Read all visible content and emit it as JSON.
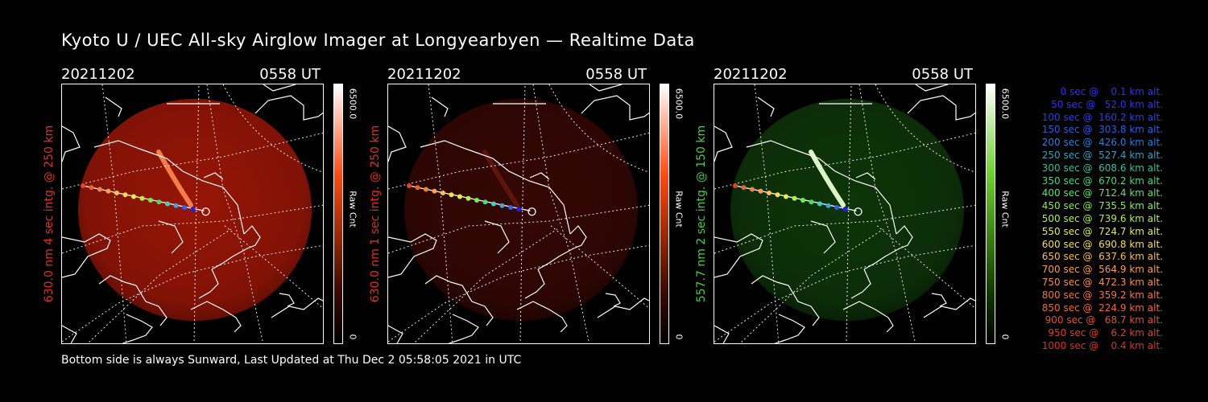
{
  "title": "Kyoto U / UEC All-sky Airglow Imager at Longyearbyen — Realtime Data",
  "footer": "Bottom side is always Sunward, Last Updated at Thu Dec  2 05:58:05 2021 in UTC",
  "colors": {
    "red_label": "#e03020",
    "green_label": "#40d040"
  },
  "panels": [
    {
      "date": "20211202",
      "time": "0558 UT",
      "ylabel": "630.0 nm 4 sec intg. @ 250 km",
      "ylabel_color": "#e03020",
      "cbar_max": "6500.0",
      "cbar_min": "0",
      "cbar_unit": "Raw Cnt",
      "cbar_color": "#ff4a10",
      "sky_color": "#b81a08",
      "sky_opacity": 0.82,
      "band_color": "#ff8a50",
      "band_opacity": 0.9
    },
    {
      "date": "20211202",
      "time": "0558 UT",
      "ylabel": "630.0 nm 1 sec intg. @ 250 km",
      "ylabel_color": "#e03020",
      "cbar_max": "6500.0",
      "cbar_min": "0",
      "cbar_unit": "Raw Cnt",
      "cbar_color": "#ff4a10",
      "sky_color": "#3a0804",
      "sky_opacity": 0.9,
      "band_color": "#7a2010",
      "band_opacity": 0.6
    },
    {
      "date": "20211202",
      "time": "0558 UT",
      "ylabel": "557.7 nm 2 sec intg. @ 150 km",
      "ylabel_color": "#40d040",
      "cbar_max": "6500.0",
      "cbar_min": "0",
      "cbar_unit": "Raw Cnt",
      "cbar_color": "#6ad02a",
      "sky_color": "#0f3a0a",
      "sky_opacity": 0.9,
      "band_color": "#e8ffd0",
      "band_opacity": 0.95
    }
  ],
  "track_colors": [
    "#e84020",
    "#f06030",
    "#f38040",
    "#f8a050",
    "#fbc050",
    "#f6df50",
    "#e6f040",
    "#b8f040",
    "#70f050",
    "#40e070",
    "#40d0c0",
    "#40a0e0",
    "#3060f0",
    "#2020e0"
  ],
  "legend": [
    {
      "text": "   0 sec @    0.1 km alt.",
      "color": "#3030ff"
    },
    {
      "text": "  50 sec @   52.0 km alt.",
      "color": "#3030ff"
    },
    {
      "text": " 100 sec @  160.2 km alt.",
      "color": "#2040f0"
    },
    {
      "text": " 150 sec @  303.8 km alt.",
      "color": "#2060e8"
    },
    {
      "text": " 200 sec @  426.0 km alt.",
      "color": "#2080d8"
    },
    {
      "text": " 250 sec @  527.4 km alt.",
      "color": "#30a0c0"
    },
    {
      "text": " 300 sec @  608.6 km alt.",
      "color": "#30c0a0"
    },
    {
      "text": " 350 sec @  670.2 km alt.",
      "color": "#40d880"
    },
    {
      "text": " 400 sec @  712.4 km alt.",
      "color": "#50e860"
    },
    {
      "text": " 450 sec @  735.5 km alt.",
      "color": "#80f050"
    },
    {
      "text": " 500 sec @  739.6 km alt.",
      "color": "#b0f040"
    },
    {
      "text": " 550 sec @  724.7 km alt.",
      "color": "#e0f040"
    },
    {
      "text": " 600 sec @  690.8 km alt.",
      "color": "#f8e040"
    },
    {
      "text": " 650 sec @  637.6 km alt.",
      "color": "#f8c040"
    },
    {
      "text": " 700 sec @  564.9 km alt.",
      "color": "#f8a040"
    },
    {
      "text": " 750 sec @  472.3 km alt.",
      "color": "#f89040"
    },
    {
      "text": " 800 sec @  359.2 km alt.",
      "color": "#f07838"
    },
    {
      "text": " 850 sec @  224.9 km alt.",
      "color": "#f06830"
    },
    {
      "text": " 900 sec @   68.7 km alt.",
      "color": "#e85028"
    },
    {
      "text": " 950 sec @    6.2 km alt.",
      "color": "#e04020"
    },
    {
      "text": "1000 sec @    0.4 km alt.",
      "color": "#e03020"
    }
  ]
}
